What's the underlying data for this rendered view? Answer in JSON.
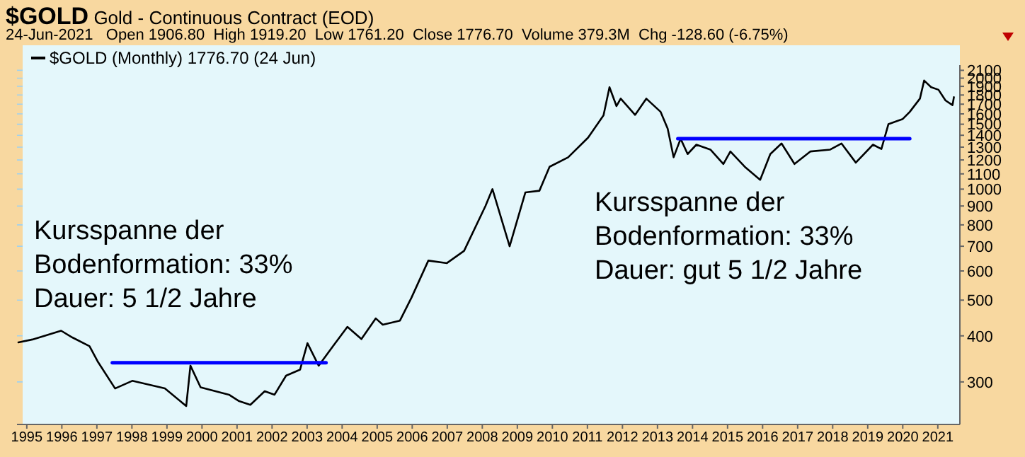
{
  "chart_data": {
    "type": "line",
    "title": "$GOLD Gold - Continuous Contract (EOD)",
    "subtitle": "24-Jun-2021   Open 1906.80  High 1919.20  Low 1761.20  Close 1776.70  Volume 379.3M  Chg -128.60 (-6.75%)",
    "annotations": [
      "Kursspanne der\nBodenformation: 33%\nDauer: 5 1/2 Jahre",
      "Kursspanne der\nBodenformation: 33%\nDauer: gut 5 1/2 Jahre"
    ],
    "log": true,
    "grid": true,
    "legend": "top left",
    "marker": "none",
    "line_style": "solid",
    "xlim": [
      1994.72,
      2021.63
    ],
    "xticks": [
      1995,
      1996,
      1997,
      1998,
      1999,
      2000,
      2001,
      2002,
      2003,
      2004,
      2005,
      2006,
      2007,
      2008,
      2009,
      2010,
      2011,
      2012,
      2013,
      2014,
      2015,
      2016,
      2017,
      2018,
      2019,
      2020,
      2021
    ],
    "ylim": [
      230,
      2170
    ],
    "yticks": [
      300,
      400,
      500,
      600,
      700,
      800,
      900,
      1000,
      1100,
      1200,
      1300,
      1400,
      1500,
      1600,
      1700,
      1800,
      1900,
      2000,
      2100
    ],
    "series": [
      {
        "name": "$GOLD (Monthly) 1776.70 (24 Jun)",
        "color": "#000000",
        "x": [
          1994.76,
          1995.16,
          1995.98,
          1996.3,
          1996.79,
          1997.03,
          1997.52,
          1998.01,
          1998.94,
          1999.55,
          1999.67,
          1999.96,
          2000.77,
          2001.06,
          2001.38,
          2001.79,
          2002.07,
          2002.4,
          2002.8,
          2003.01,
          2003.33,
          2003.74,
          2004.15,
          2004.55,
          2004.96,
          2005.16,
          2005.65,
          2005.98,
          2006.46,
          2006.99,
          2007.48,
          2008.09,
          2008.29,
          2008.78,
          2009.23,
          2009.63,
          2009.92,
          2010.45,
          2011.02,
          2011.46,
          2011.63,
          2011.83,
          2011.95,
          2012.36,
          2012.68,
          2013.09,
          2013.29,
          2013.46,
          2013.66,
          2013.86,
          2014.11,
          2014.51,
          2014.88,
          2015.08,
          2015.49,
          2015.93,
          2016.22,
          2016.54,
          2016.91,
          2017.36,
          2017.93,
          2018.25,
          2018.66,
          2019.15,
          2019.39,
          2019.59,
          2020.0,
          2020.2,
          2020.49,
          2020.61,
          2020.81,
          2021.02,
          2021.22,
          2021.42,
          2021.46
        ],
        "values": [
          384,
          391,
          413,
          396,
          375,
          340,
          288,
          302,
          288,
          258,
          332,
          290,
          277,
          266,
          260,
          283,
          277,
          312,
          324,
          382,
          332,
          375,
          423,
          392,
          446,
          429,
          440,
          508,
          640,
          630,
          680,
          900,
          1000,
          700,
          980,
          990,
          1150,
          1220,
          1380,
          1586,
          1890,
          1680,
          1760,
          1590,
          1760,
          1620,
          1460,
          1220,
          1370,
          1245,
          1320,
          1280,
          1170,
          1265,
          1150,
          1060,
          1245,
          1330,
          1170,
          1265,
          1280,
          1330,
          1180,
          1320,
          1285,
          1500,
          1550,
          1620,
          1760,
          1970,
          1890,
          1860,
          1740,
          1690,
          1776.7
        ]
      },
      {
        "type": "line",
        "color": "#0000ff",
        "x": [
          1997.44,
          2003.54
        ],
        "values": [
          338,
          338
        ]
      },
      {
        "type": "line",
        "color": "#0000ff",
        "x": [
          2013.58,
          2020.2
        ],
        "values": [
          1370,
          1370
        ]
      }
    ]
  }
}
